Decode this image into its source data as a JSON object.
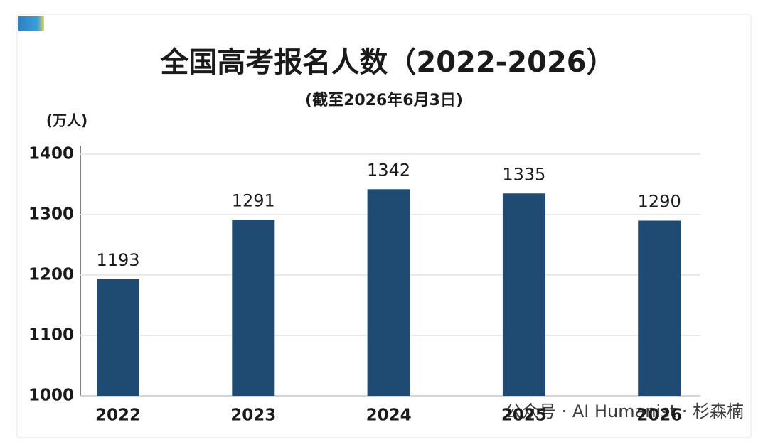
{
  "chart_data": {
    "type": "bar",
    "title": "全国高考报名人数（2022-2026）",
    "subtitle": "(截至2026年6月3日)",
    "y_label": "(万人)",
    "categories": [
      "2022",
      "2023",
      "2024",
      "2025",
      "2026"
    ],
    "values": [
      1193,
      1291,
      1342,
      1335,
      1290
    ],
    "color": "#1f4b72",
    "ylim": [
      1000,
      1400
    ],
    "yticks": [
      1000,
      1100,
      1200,
      1300,
      1400
    ],
    "grid": true,
    "watermark": "公众号 · AI Humanist · 杉森楠"
  }
}
